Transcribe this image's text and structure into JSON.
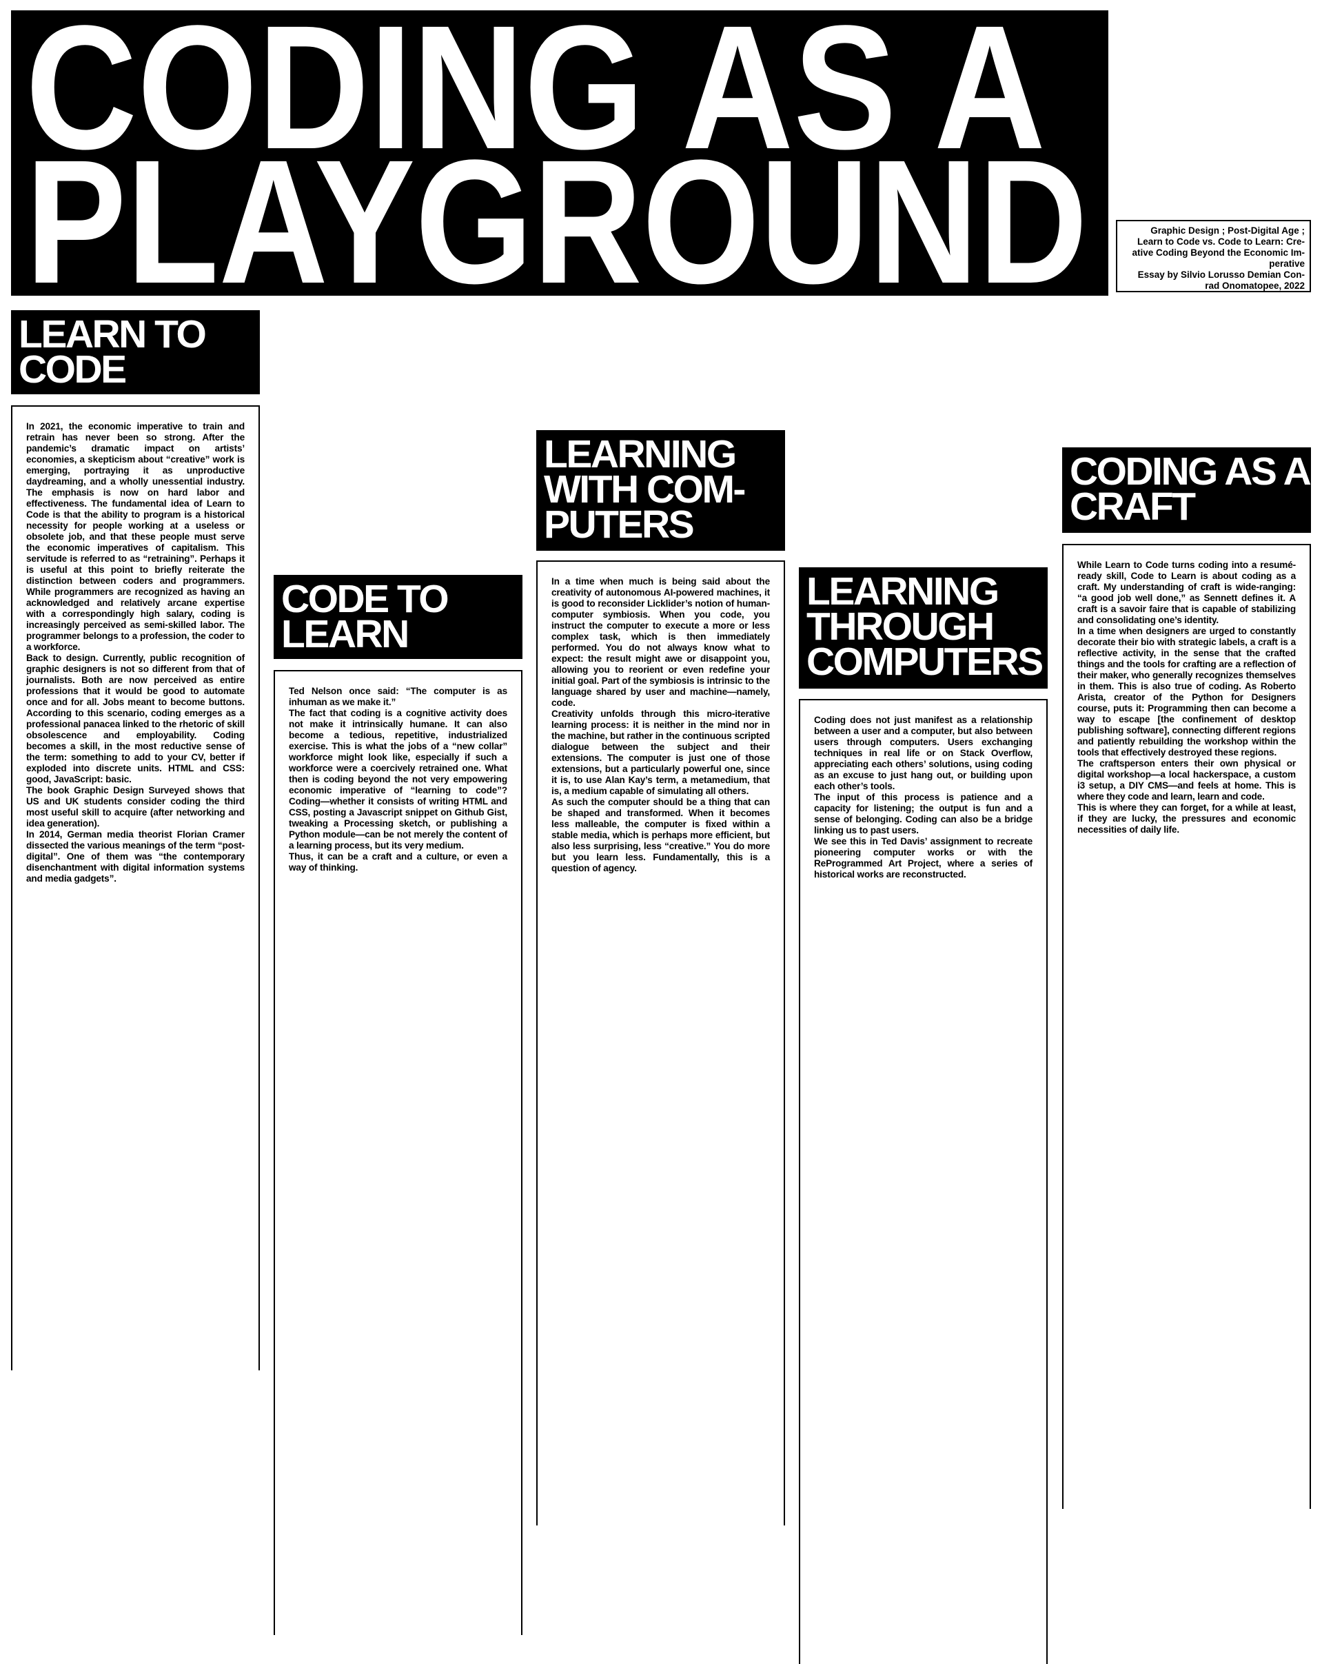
{
  "title": {
    "lines": [
      "CODING AS A",
      "PLAYGROUND"
    ]
  },
  "info": {
    "lines": [
      "Graphic Design ; Post-Digital Age ;",
      "Learn to Code vs. Code to Learn: Cre-",
      "ative Coding Beyond the Economic Im-",
      "perative",
      "Essay by Silvio Lorusso Demian Con-",
      "rad Onomatopee, 2022"
    ]
  },
  "sections": [
    {
      "heading": [
        "LEARN TO",
        "CODE"
      ],
      "paragraphs": [
        "In 2021, the economic imperative to train and retrain has never been so strong. After the pandemic’s dramatic impact on artists’ economies, a skepticism about “creative” work is emerging, portraying it as unproductive daydreaming, and a wholly unessential industry. The emphasis is now on hard labor and effectiveness. The fundamental idea of Learn to Code is that the ability to program is a historical necessity for people working at a useless or obsolete job, and that these people must serve the economic imperatives of capitalism. This servitude is referred to as “retraining”. Perhaps it is useful at this point to briefly reiterate the distinction between coders and programmers. While programmers are recognized as having an acknowledged and relatively arcane expertise with a correspondingly high salary, coding is increasingly perceived as semi-skilled labor. The programmer belongs to a profession, the coder to a workforce.",
        "Back to design. Currently, public recognition of graphic designers is not so different from that of journalists. Both are now perceived as entire professions that it would be good to automate once and for all. Jobs meant to become buttons. According to this scenario, coding emerges as a professional panacea linked to the rhetoric of skill obsolescence and employability. Coding becomes a skill, in the most reductive sense of the term: something to add to your CV, better if exploded into discrete units. HTML and CSS: good, JavaScript: basic.",
        "The book Graphic Design Surveyed shows that US and UK students consider coding the third most useful skill to acquire (after networking and idea generation).",
        "In 2014, German media theorist Florian Cramer dissected the various meanings of the term “post-digital”. One of them was “the contemporary disenchantment with digital information systems and media gadgets”."
      ]
    },
    {
      "heading": [
        "CODE TO",
        "LEARN"
      ],
      "paragraphs": [
        "Ted Nelson once said: “The computer is as inhuman as we make it.”",
        "The fact that coding is a cognitive activity does not make it intrinsically humane. It can also become a tedious, repetitive, industrialized exercise. This is what the jobs of a “new collar” workforce might look like, especially if such a workforce were a coercively retrained one. What then is coding beyond the not very empowering economic imperative of “learning to code”? Coding—whether it consists of writing HTML and CSS, posting a Javascript snippet on Github Gist, tweaking a Processing sketch, or publishing a Python module—can be not merely the content of a learning process, but its very medium.",
        "Thus, it can be a craft and a culture, or even a way of thinking."
      ]
    },
    {
      "heading": [
        "LEARNING",
        "WITH COM-",
        "PUTERS"
      ],
      "paragraphs": [
        "In a time when much is being said about the creativity of autonomous AI-powered machines, it is good to reconsider Licklider’s notion of human-computer symbiosis. When you code, you instruct the computer to execute a more or less complex task, which is then immediately performed. You do not always know what to expect: the result might awe or disappoint you, allowing you to reorient or even redefine your initial goal. Part of the symbiosis is intrinsic to the language shared by user and machine—namely, code.",
        "Creativity unfolds through this micro-iterative learning process: it is neither in the mind nor in the machine, but rather in the continuous scripted dialogue between the subject and their extensions. The computer is just one of those extensions, but a particularly powerful one, since it is, to use Alan Kay’s term, a metamedium, that is, a medium capable of simulating all others.",
        "As such the computer should be a thing that can be shaped and transformed. When it becomes less malleable, the computer is fixed within a stable media, which is perhaps more efficient, but also less surprising, less “creative.” You do more but you learn less. Fundamentally, this is a question of agency."
      ]
    },
    {
      "heading": [
        "LEARNING",
        "THROUGH",
        "COMPUTERS"
      ],
      "paragraphs": [
        "Coding does not just manifest as a relationship between a user and a computer, but also between users through computers. Users exchanging techniques in real life or on Stack Overflow, appreciating each others’ solutions, using coding as an excuse to just hang out, or building upon each other’s tools.",
        "The input of this process is patience and a capacity for listening; the output is fun and a sense of belonging. Coding can also be a bridge linking us to past users.",
        "We see this in Ted Davis’ assignment to recreate pioneering computer works or with the ReProgrammed Art Project, where a series of historical works are reconstructed."
      ]
    },
    {
      "heading": [
        "CODING AS A",
        "CRAFT"
      ],
      "paragraphs": [
        "While Learn to Code turns coding into a resumé-ready skill, Code to Learn is about coding as a craft. My understanding of craft is wide-ranging: “a good job well done,” as Sennett defines it. A craft is a savoir faire that is capable of stabilizing and consolidating one’s identity.",
        "In a time when designers are urged to constantly decorate their bio with strategic labels, a craft is a reflective activity, in the sense that the crafted things and the tools for crafting are a reflection of their maker, who generally recognizes themselves in them. This is also true of coding. As Roberto Arista, creator of the Python for Designers course, puts it: Programming then can become a way to escape [the confinement of desktop publishing software], connecting different regions and patiently rebuilding the workshop within the tools that effectively destroyed these regions.",
        "The craftsperson enters their own physical or digital workshop—a local hackerspace, a custom i3 setup, a DIY CMS—and feels at home. This is where they code and learn, learn and code.",
        "This is where they can forget, for a while at least, if they are lucky, the pressures and economic necessities of daily life."
      ]
    }
  ]
}
